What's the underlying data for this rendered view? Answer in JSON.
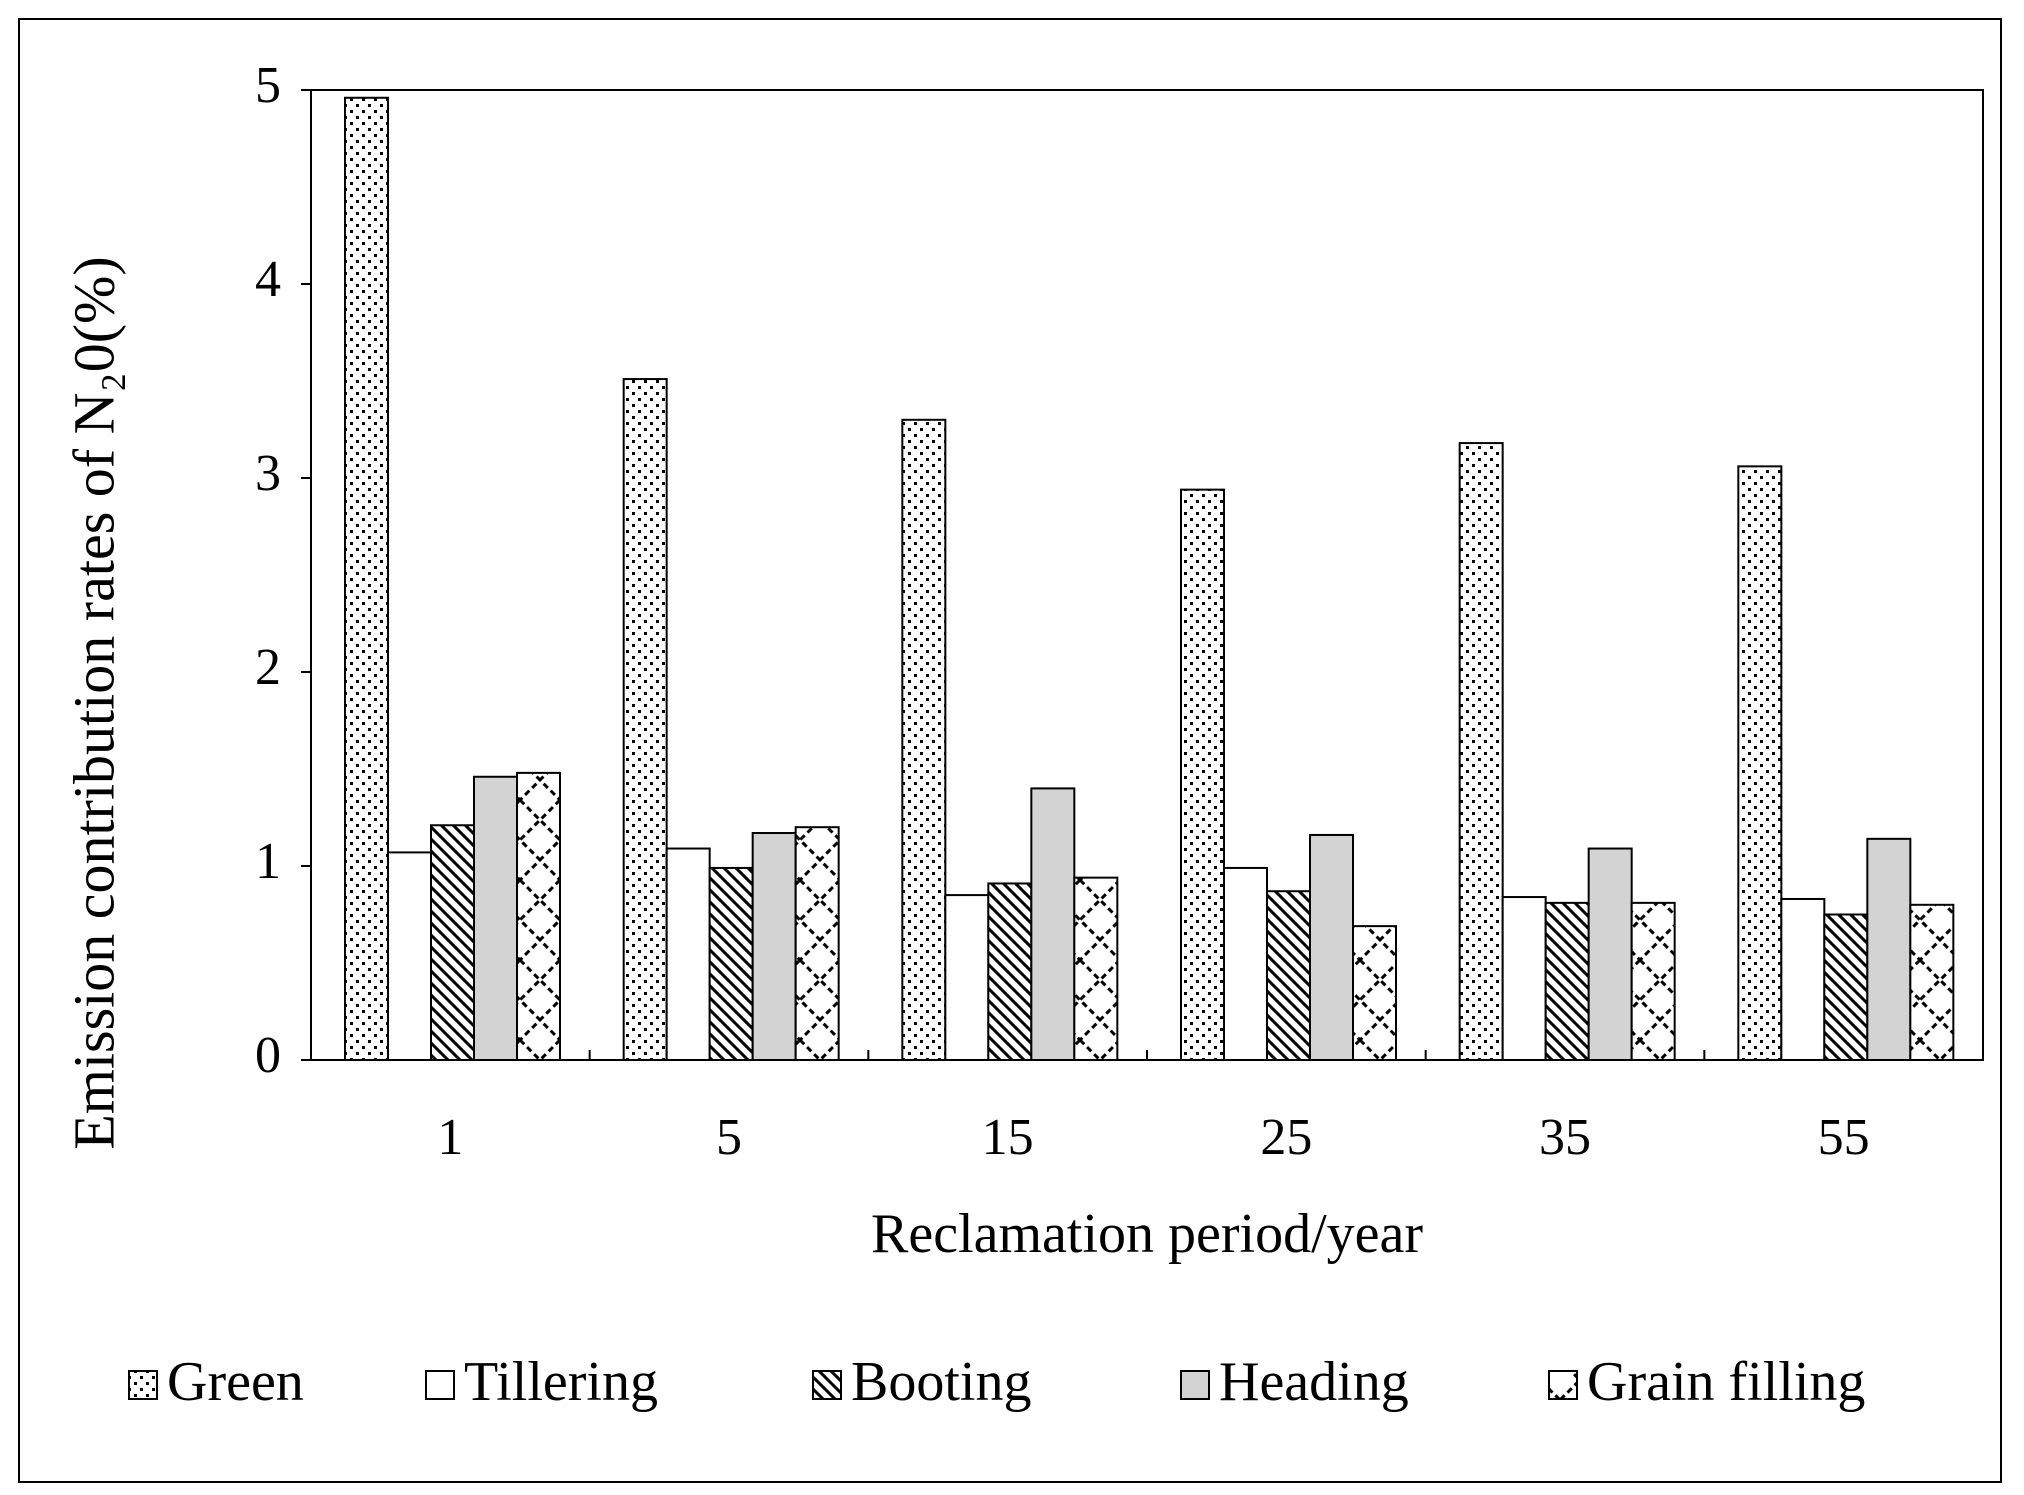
{
  "chart_data": {
    "type": "bar",
    "y_label": "Emission contribution rates of N₂0(%)",
    "x_label": "Reclamation period/year",
    "categories": [
      "1",
      "5",
      "15",
      "25",
      "35",
      "55"
    ],
    "series": [
      {
        "name": "Green",
        "color": "#ffffff",
        "values": [
          4.96,
          3.51,
          3.3,
          2.94,
          3.18,
          3.06
        ]
      },
      {
        "name": "Tillering",
        "color": "#ffffff",
        "values": [
          1.07,
          1.09,
          0.85,
          0.99,
          0.84,
          0.83
        ]
      },
      {
        "name": "Booting",
        "color": "#ffffff",
        "values": [
          1.21,
          0.99,
          0.91,
          0.87,
          0.81,
          0.75
        ]
      },
      {
        "name": "Heading",
        "color": "#d3d3d3",
        "values": [
          1.46,
          1.17,
          1.4,
          1.16,
          1.09,
          1.14
        ]
      },
      {
        "name": "Grain filling",
        "color": "#ffffff",
        "values": [
          1.48,
          1.2,
          0.94,
          0.69,
          0.81,
          0.8
        ]
      }
    ],
    "ylim": [
      0,
      5
    ],
    "yticks": [
      0,
      1,
      2,
      3,
      4,
      5
    ],
    "grid": false
  }
}
